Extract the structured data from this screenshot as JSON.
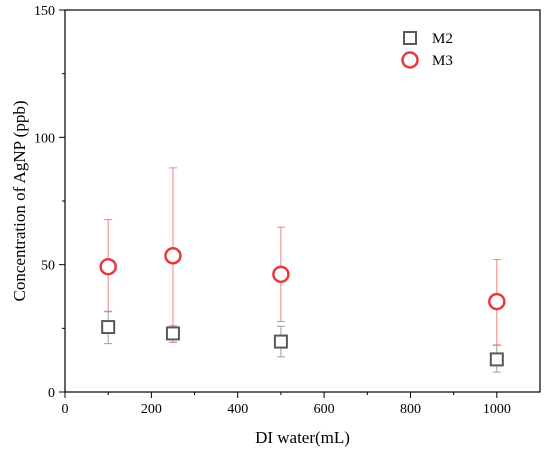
{
  "chart_data": {
    "type": "scatter",
    "title": "",
    "xlabel": "DI water(mL)",
    "ylabel": "Concentration of AgNP (ppb)",
    "xlim": [
      0,
      1100
    ],
    "ylim": [
      0,
      150
    ],
    "xticks": [
      0,
      200,
      400,
      600,
      800,
      1000
    ],
    "yticks": [
      0,
      50,
      100,
      150
    ],
    "xtick_labels": [
      "0",
      "200",
      "400",
      "600",
      "800",
      "1000"
    ],
    "ytick_labels": [
      "0",
      "50",
      "100",
      "150"
    ],
    "grid": false,
    "legend_position": "top-right",
    "series": [
      {
        "name": "M2",
        "marker": "square",
        "color": "#595959",
        "error_color": "#9e9e9e",
        "x": [
          100,
          250,
          500,
          1000
        ],
        "y": [
          25.5,
          23.0,
          19.8,
          12.8
        ],
        "err_low": [
          6.5,
          3.5,
          6.0,
          5.0
        ],
        "err_high": [
          6.0,
          3.0,
          6.0,
          5.5
        ]
      },
      {
        "name": "M3",
        "marker": "circle",
        "color": "#e8383d",
        "error_color": "#f08080",
        "x": [
          100,
          250,
          500,
          1000
        ],
        "y": [
          49.2,
          53.5,
          46.2,
          35.5
        ],
        "err_low": [
          17.5,
          34.0,
          18.5,
          17.0
        ],
        "err_high": [
          18.5,
          34.5,
          18.5,
          16.5
        ]
      }
    ]
  }
}
